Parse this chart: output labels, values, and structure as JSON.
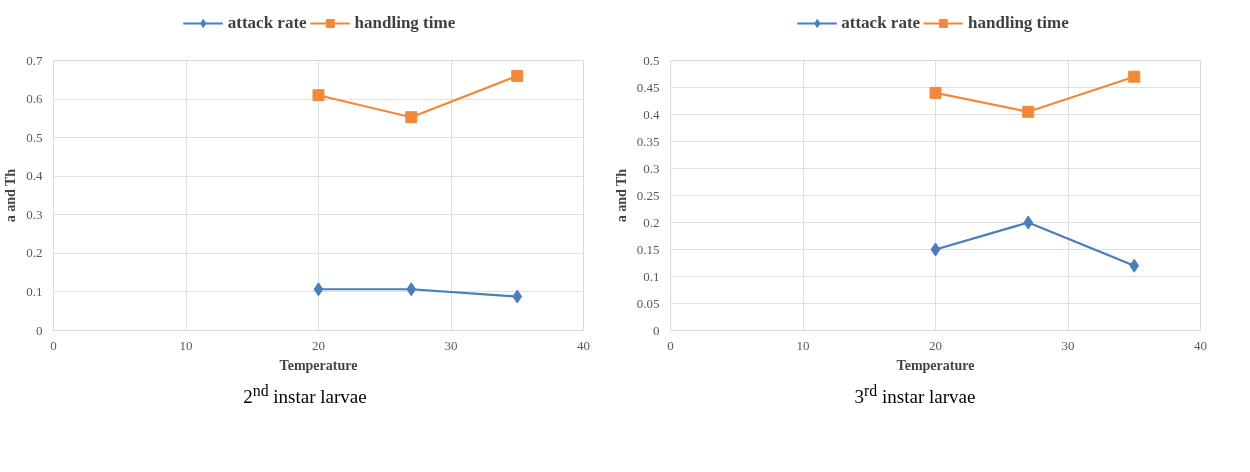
{
  "chart_data": [
    {
      "type": "line",
      "xlabel": "Temperature",
      "ylabel": "a and Th",
      "annotations": [
        "2$^{nd}$ instar larvae"
      ],
      "x": [
        20,
        27,
        35
      ],
      "xlim": [
        0,
        40
      ],
      "xticks": [
        0,
        10,
        20,
        30,
        40
      ],
      "ylim": [
        0,
        0.7
      ],
      "yticks": [
        0,
        0.1,
        0.2,
        0.3,
        0.4,
        0.5,
        0.6,
        0.7
      ],
      "grid": true,
      "legend": "top",
      "series": [
        {
          "name": "attack rate",
          "color": "#4a7ebb",
          "marker": "diamond",
          "values": [
            0.107,
            0.107,
            0.088
          ]
        },
        {
          "name": "handling time",
          "color": "#f08a3a",
          "marker": "square",
          "values": [
            0.61,
            0.553,
            0.66
          ]
        }
      ]
    },
    {
      "type": "line",
      "xlabel": "Temperature",
      "ylabel": "a and Th",
      "annotations": [
        "3$^{rd}$ instar larvae"
      ],
      "x": [
        20,
        27,
        35
      ],
      "xlim": [
        0,
        40
      ],
      "xticks": [
        0,
        10,
        20,
        30,
        40
      ],
      "ylim": [
        0,
        0.5
      ],
      "yticks": [
        0,
        0.05,
        0.1,
        0.15,
        0.2,
        0.25,
        0.3,
        0.35,
        0.4,
        0.45,
        0.5
      ],
      "grid": true,
      "legend": "top",
      "series": [
        {
          "name": "attack rate",
          "color": "#4a7ebb",
          "marker": "diamond",
          "values": [
            0.15,
            0.2,
            0.12
          ]
        },
        {
          "name": "handling time",
          "color": "#f08a3a",
          "marker": "square",
          "values": [
            0.44,
            0.405,
            0.47
          ]
        }
      ]
    }
  ]
}
